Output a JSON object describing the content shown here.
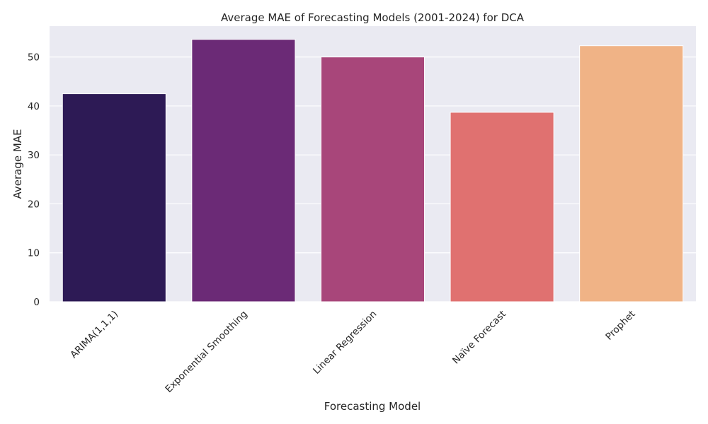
{
  "chart_data": {
    "type": "bar",
    "title": "Average MAE of Forecasting Models (2001-2024) for DCA",
    "xlabel": "Forecasting Model",
    "ylabel": "Average MAE",
    "categories": [
      "ARIMA(1,1,1)",
      "Exponential Smoothing",
      "Linear Regression",
      "Naïve Forecast",
      "Prophet"
    ],
    "values": [
      42.5,
      53.6,
      50.0,
      38.7,
      52.3
    ],
    "colors": [
      "#2d1a55",
      "#6b2a76",
      "#a8467a",
      "#e07170",
      "#f0b386"
    ],
    "yticks": [
      "0",
      "10",
      "20",
      "30",
      "40",
      "50"
    ],
    "ylim": [
      0,
      56.3
    ],
    "grid": true,
    "background_color": "#eaeaf2"
  }
}
